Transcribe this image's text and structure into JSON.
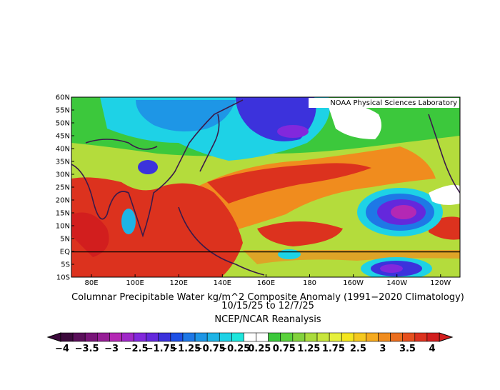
{
  "map": {
    "lat_labels": [
      "60N",
      "55N",
      "50N",
      "45N",
      "40N",
      "35N",
      "30N",
      "25N",
      "20N",
      "15N",
      "10N",
      "5N",
      "EQ",
      "5S",
      "10S"
    ],
    "lon_labels": [
      "80E",
      "100E",
      "120E",
      "140E",
      "160E",
      "180",
      "160W",
      "140W",
      "120W"
    ],
    "credit": "NOAA Physical Sciences Laboratory"
  },
  "caption": {
    "title": "Columnar Precipitable Water kg/m^2 Composite Anomaly (1991−2020 Climatology)",
    "dates": "10/15/25  to 12/7/25",
    "source": "NCEP/NCAR Reanalysis"
  },
  "colorbar": {
    "labels": [
      "−4",
      "−3.5",
      "−3",
      "−2.5",
      "−1.75",
      "−1.25",
      "−0.75",
      "−0.25",
      "0.25",
      "0.75",
      "1.25",
      "1.75",
      "2.5",
      "3",
      "3.5",
      "4"
    ],
    "colors": [
      "#3c0a3c",
      "#5a0f5a",
      "#781478",
      "#961e96",
      "#b428b4",
      "#a028c8",
      "#8228dc",
      "#6428dc",
      "#3c32dc",
      "#1e50e6",
      "#1e78e6",
      "#1e96e6",
      "#1eb4e6",
      "#1ed2e6",
      "#1ee6dc",
      "#ffffff",
      "#ffffff",
      "#3cc83c",
      "#5ad23c",
      "#82d23c",
      "#aadc3c",
      "#c8e63c",
      "#e6f03c",
      "#f5e61e",
      "#f5c81e",
      "#f5aa1e",
      "#f08c1e",
      "#eb6e1e",
      "#e6501e",
      "#dc321e",
      "#d21e1e"
    ]
  }
}
